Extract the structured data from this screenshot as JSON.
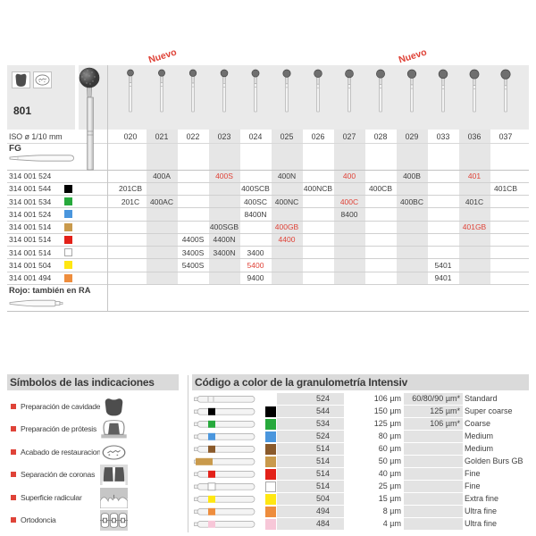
{
  "colors": {
    "red_accent": "#df4338",
    "band_grey": "#eaeaea",
    "stripe_grey": "#e6e6e6",
    "cell_grey": "#e3e3e3",
    "title_bar_grey": "#dadada",
    "text_dark": "#3d3d3d"
  },
  "series_table": {
    "series_number": "801",
    "indication_icons": [
      "cavity-prep",
      "restoration-finishing"
    ],
    "nuevo_label": "Nuevo",
    "nuevo_columns": [
      "021",
      "029"
    ],
    "iso_label": "ISO ø 1/10 mm",
    "shank_label": "FG",
    "columns": [
      "020",
      "021",
      "022",
      "023",
      "024",
      "025",
      "026",
      "027",
      "028",
      "029",
      "033",
      "036",
      "037"
    ],
    "striped_columns": [
      "021",
      "023",
      "025",
      "027",
      "029",
      "036"
    ],
    "rows": [
      {
        "code": "314 001 524",
        "color": null,
        "cells": [
          {
            "col": "021",
            "text": "400A",
            "red": false
          },
          {
            "col": "023",
            "text": "400S",
            "red": true
          },
          {
            "col": "025",
            "text": "400N",
            "red": false
          },
          {
            "col": "027",
            "text": "400",
            "red": true
          },
          {
            "col": "029",
            "text": "400B",
            "red": false
          },
          {
            "col": "036",
            "text": "401",
            "red": true
          }
        ]
      },
      {
        "code": "314 001 544",
        "color": "#000000",
        "cells": [
          {
            "col": "020",
            "text": "201CB",
            "red": false
          },
          {
            "col": "024",
            "text": "400SCB",
            "red": false
          },
          {
            "col": "026",
            "text": "400NCB",
            "red": false
          },
          {
            "col": "028",
            "text": "400CB",
            "red": false
          },
          {
            "col": "037",
            "text": "401CB",
            "red": false
          }
        ]
      },
      {
        "code": "314 001 534",
        "color": "#27a93c",
        "cells": [
          {
            "col": "020",
            "text": "201C",
            "red": false
          },
          {
            "col": "021",
            "text": "400AC",
            "red": false
          },
          {
            "col": "024",
            "text": "400SC",
            "red": false
          },
          {
            "col": "025",
            "text": "400NC",
            "red": false
          },
          {
            "col": "027",
            "text": "400C",
            "red": true
          },
          {
            "col": "029",
            "text": "400BC",
            "red": false
          },
          {
            "col": "036",
            "text": "401C",
            "red": false
          }
        ]
      },
      {
        "code": "314 001 524",
        "color": "#4a96dd",
        "cells": [
          {
            "col": "024",
            "text": "8400N",
            "red": false
          },
          {
            "col": "027",
            "text": "8400",
            "red": false
          }
        ]
      },
      {
        "code": "314 001 514",
        "color": "#c99a4c",
        "cells": [
          {
            "col": "023",
            "text": "400SGB",
            "red": false
          },
          {
            "col": "025",
            "text": "400GB",
            "red": true
          },
          {
            "col": "036",
            "text": "401GB",
            "red": true
          }
        ]
      },
      {
        "code": "314 001 514",
        "color": "#e32119",
        "cells": [
          {
            "col": "022",
            "text": "4400S",
            "red": false
          },
          {
            "col": "023",
            "text": "4400N",
            "red": false
          },
          {
            "col": "025",
            "text": "4400",
            "red": true
          }
        ]
      },
      {
        "code": "314 001 514",
        "color": "#ffffff",
        "cells": [
          {
            "col": "022",
            "text": "3400S",
            "red": false
          },
          {
            "col": "023",
            "text": "3400N",
            "red": false
          },
          {
            "col": "024",
            "text": "3400",
            "red": false
          }
        ]
      },
      {
        "code": "314 001 504",
        "color": "#ffe712",
        "cells": [
          {
            "col": "022",
            "text": "5400S",
            "red": false
          },
          {
            "col": "024",
            "text": "5400",
            "red": true
          },
          {
            "col": "033",
            "text": "5401",
            "red": false
          }
        ]
      },
      {
        "code": "314 001 494",
        "color": "#ee8d3d",
        "cells": [
          {
            "col": "024",
            "text": "9400",
            "red": false
          },
          {
            "col": "033",
            "text": "9401",
            "red": false
          }
        ]
      }
    ],
    "footer_note": "Rojo: también en RA"
  },
  "symbols_section": {
    "title": "Símbolos de las indicaciones",
    "items": [
      {
        "label": "Preparación de cavidades",
        "icon": "cavity-prep"
      },
      {
        "label": "Preparación de prótesis",
        "icon": "prosthesis-prep"
      },
      {
        "label": "Acabado de restauraciones",
        "icon": "restoration-finishing"
      },
      {
        "label": "Separación de coronas",
        "icon": "crown-separation"
      },
      {
        "label": "Superficie radicular",
        "icon": "root-surface"
      },
      {
        "label": "Ortodoncia",
        "icon": "orthodontics"
      }
    ]
  },
  "grit_section": {
    "title": "Código a color de la granulometría Intensiv",
    "rows": [
      {
        "band": null,
        "wide_band": false,
        "code": "524",
        "grain": "106 µm",
        "extra": "60/80/90 µm*",
        "name": "Standard"
      },
      {
        "band": "#000000",
        "wide_band": false,
        "code": "544",
        "grain": "150 µm",
        "extra": "125 µm*",
        "name": "Super coarse"
      },
      {
        "band": "#27a93c",
        "wide_band": false,
        "code": "534",
        "grain": "125 µm",
        "extra": "106 µm*",
        "name": "Coarse"
      },
      {
        "band": "#4a96dd",
        "wide_band": false,
        "code": "524",
        "grain": "80 µm",
        "extra": "",
        "name": "Medium"
      },
      {
        "band": "#8a5a2b",
        "wide_band": false,
        "code": "514",
        "grain": "60 µm",
        "extra": "",
        "name": "Medium"
      },
      {
        "band": "#c99a4c",
        "wide_band": true,
        "code": "514",
        "grain": "50 µm",
        "extra": "",
        "name": "Golden Burs GB"
      },
      {
        "band": "#e32119",
        "wide_band": false,
        "code": "514",
        "grain": "40 µm",
        "extra": "",
        "name": "Fine"
      },
      {
        "band": "#ffffff",
        "wide_band": false,
        "code": "514",
        "grain": "25 µm",
        "extra": "",
        "name": "Fine"
      },
      {
        "band": "#ffe712",
        "wide_band": false,
        "code": "504",
        "grain": "15 µm",
        "extra": "",
        "name": "Extra fine"
      },
      {
        "band": "#ee8d3d",
        "wide_band": false,
        "code": "494",
        "grain": "8 µm",
        "extra": "",
        "name": "Ultra fine"
      },
      {
        "band": "#f7c7d8",
        "wide_band": false,
        "code": "484",
        "grain": "4 µm",
        "extra": "",
        "name": "Ultra fine"
      }
    ]
  }
}
